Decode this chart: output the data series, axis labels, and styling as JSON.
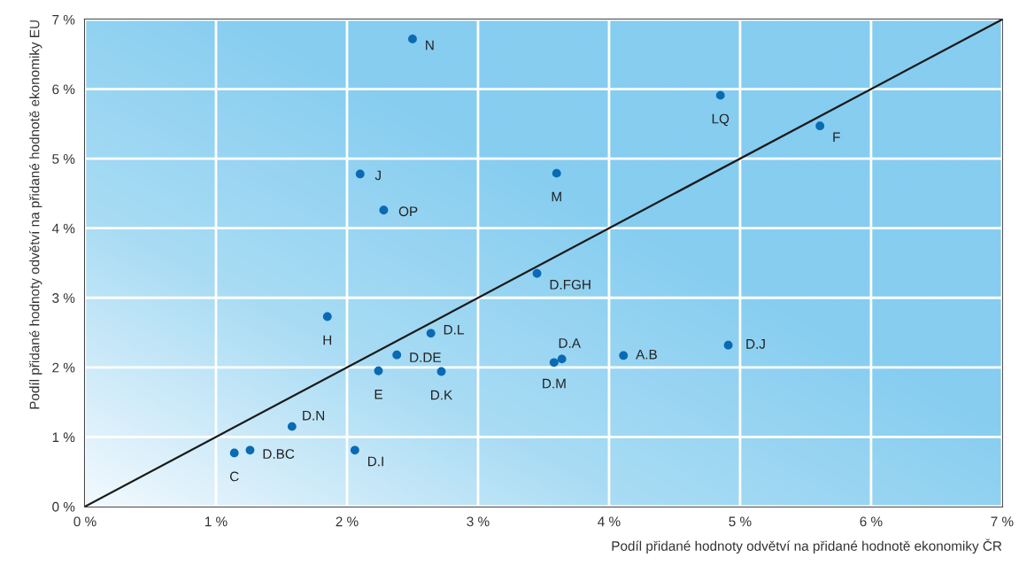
{
  "chart_data": {
    "type": "scatter",
    "xlabel": "Podíl přidané hodnoty odvětví na přidané hodnotě ekonomiky ČR",
    "ylabel": "Podíl přidané hodnoty odvětví na přidané hodnotě ekonomiky EU",
    "series": [
      {
        "color": "#0a6ab4",
        "marker": "circle",
        "x": [
          2.5,
          2.1,
          2.28,
          4.85,
          5.61,
          3.6,
          3.45,
          1.85,
          2.64,
          2.38,
          2.24,
          2.72,
          1.58,
          1.14,
          1.26,
          2.06,
          3.64,
          3.58,
          4.11,
          4.91
        ],
        "values": [
          6.72,
          4.78,
          4.26,
          5.91,
          5.47,
          4.79,
          3.35,
          2.73,
          2.49,
          2.18,
          1.95,
          1.94,
          1.15,
          0.77,
          0.81,
          0.81,
          2.12,
          2.07,
          2.17,
          2.32
        ]
      },
      {
        "type": "line",
        "color": "#1a1a1a",
        "x": [
          0,
          7
        ],
        "values": [
          0,
          7
        ]
      }
    ],
    "annotations": [
      {
        "text": "N",
        "x": 2.5,
        "y": 6.72
      },
      {
        "text": "J",
        "x": 2.1,
        "y": 4.78
      },
      {
        "text": "OP",
        "x": 2.28,
        "y": 4.26
      },
      {
        "text": "LQ",
        "x": 4.85,
        "y": 5.91
      },
      {
        "text": "F",
        "x": 5.61,
        "y": 5.47
      },
      {
        "text": "M",
        "x": 3.6,
        "y": 4.79
      },
      {
        "text": "D.FGH",
        "x": 3.45,
        "y": 3.35
      },
      {
        "text": "H",
        "x": 1.85,
        "y": 2.73
      },
      {
        "text": "D.L",
        "x": 2.64,
        "y": 2.49
      },
      {
        "text": "D.DE",
        "x": 2.38,
        "y": 2.18
      },
      {
        "text": "E",
        "x": 2.24,
        "y": 1.95
      },
      {
        "text": "D.K",
        "x": 2.72,
        "y": 1.94
      },
      {
        "text": "D.N",
        "x": 1.58,
        "y": 1.15
      },
      {
        "text": "C",
        "x": 1.14,
        "y": 0.77
      },
      {
        "text": "D.BC",
        "x": 1.26,
        "y": 0.81
      },
      {
        "text": "D.I",
        "x": 2.06,
        "y": 0.81
      },
      {
        "text": "D.A",
        "x": 3.64,
        "y": 2.12
      },
      {
        "text": "D.M",
        "x": 3.58,
        "y": 2.07
      },
      {
        "text": "A.B",
        "x": 4.11,
        "y": 2.17
      },
      {
        "text": "D.J",
        "x": 4.91,
        "y": 2.32
      }
    ],
    "xlim": [
      0,
      7
    ],
    "ylim": [
      0,
      7
    ],
    "xticks": [
      {
        "value": 0,
        "label": "0 %"
      },
      {
        "value": 1,
        "label": "1 %"
      },
      {
        "value": 2,
        "label": "2 %"
      },
      {
        "value": 3,
        "label": "3 %"
      },
      {
        "value": 4,
        "label": "4 %"
      },
      {
        "value": 5,
        "label": "5 %"
      },
      {
        "value": 6,
        "label": "6 %"
      },
      {
        "value": 7,
        "label": "7 %"
      }
    ],
    "yticks": [
      {
        "value": 0,
        "label": "0 %"
      },
      {
        "value": 1,
        "label": "1 %"
      },
      {
        "value": 2,
        "label": "2 %"
      },
      {
        "value": 3,
        "label": "3 %"
      },
      {
        "value": 4,
        "label": "4 %"
      },
      {
        "value": 5,
        "label": "5 %"
      },
      {
        "value": 6,
        "label": "6 %"
      },
      {
        "value": 7,
        "label": "7 %"
      }
    ],
    "grid": true,
    "legend": false
  }
}
